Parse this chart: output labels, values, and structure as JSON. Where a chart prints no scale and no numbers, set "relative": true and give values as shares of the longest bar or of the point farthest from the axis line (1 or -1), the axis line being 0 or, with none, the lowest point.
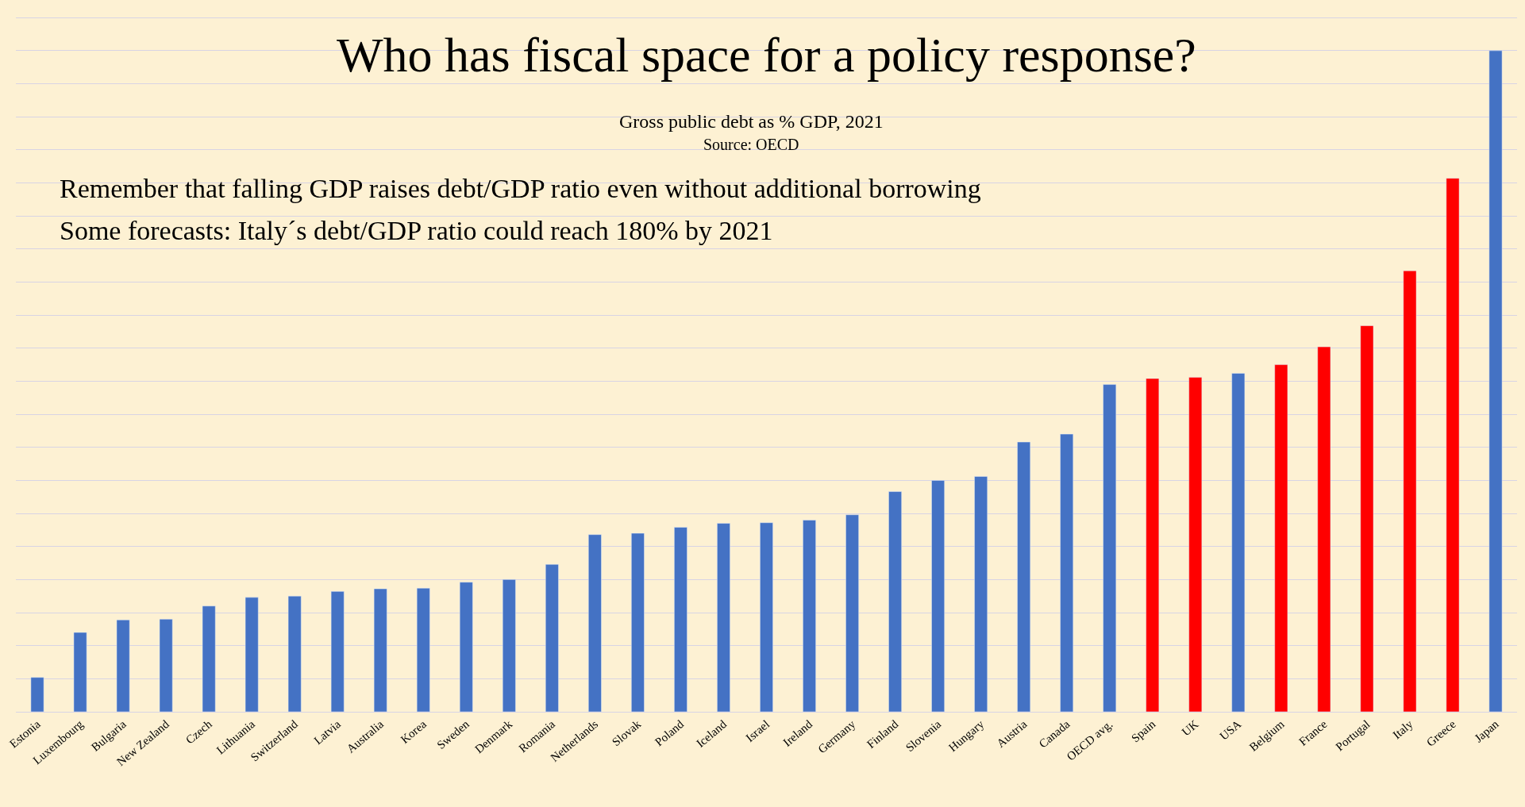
{
  "chart_data": {
    "type": "bar",
    "title": "Who has fiscal space for a policy response?",
    "subtitle": "Gross public debt as % GDP, 2021",
    "annotations": [
      "Source: OECD",
      "Remember that falling GDP raises debt/GDP ratio even without additional borrowing",
      "Some forecasts: Italy´s debt/GDP ratio could reach 180% by 2021"
    ],
    "relative": true,
    "grid": "y",
    "legend": false,
    "categories": [
      "Estonia",
      "Luxembourg",
      "Bulgaria",
      "New Zealand",
      "Czech",
      "Lithuania",
      "Switzerland",
      "Latvia",
      "Australia",
      "Korea",
      "Sweden",
      "Denmark",
      "Romania",
      "Netherlands",
      "Slovak",
      "Poland",
      "Iceland",
      "Israel",
      "Ireland",
      "Germany",
      "Finland",
      "Slovenia",
      "Hungary",
      "Austria",
      "Canada",
      "OECD avg.",
      "Spain",
      "UK",
      "USA",
      "Belgium",
      "France",
      "Portugal",
      "Italy",
      "Greece",
      "Japan"
    ],
    "values": [
      0.052,
      0.12,
      0.139,
      0.14,
      0.16,
      0.173,
      0.175,
      0.182,
      0.186,
      0.187,
      0.196,
      0.2,
      0.223,
      0.268,
      0.27,
      0.279,
      0.285,
      0.286,
      0.29,
      0.298,
      0.333,
      0.35,
      0.356,
      0.408,
      0.42,
      0.495,
      0.504,
      0.506,
      0.512,
      0.525,
      0.552,
      0.584,
      0.667,
      0.807,
      1
    ],
    "colors": [
      "#4472c4",
      "#4472c4",
      "#4472c4",
      "#4472c4",
      "#4472c4",
      "#4472c4",
      "#4472c4",
      "#4472c4",
      "#4472c4",
      "#4472c4",
      "#4472c4",
      "#4472c4",
      "#4472c4",
      "#4472c4",
      "#4472c4",
      "#4472c4",
      "#4472c4",
      "#4472c4",
      "#4472c4",
      "#4472c4",
      "#4472c4",
      "#4472c4",
      "#4472c4",
      "#4472c4",
      "#4472c4",
      "#4472c4",
      "#ff0000",
      "#ff0000",
      "#4472c4",
      "#ff0000",
      "#ff0000",
      "#ff0000",
      "#ff0000",
      "#ff0000",
      "#4472c4"
    ]
  }
}
